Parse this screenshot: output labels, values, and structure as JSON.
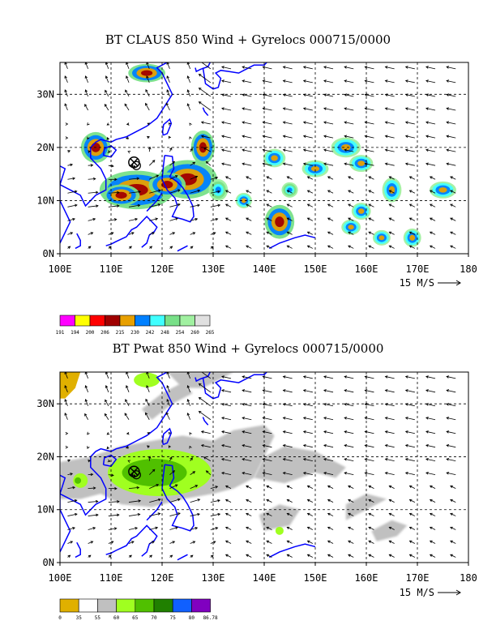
{
  "chart_data": [
    {
      "type": "heatmap",
      "title": "BT CLAUS 850 Wind + Gyrelocs 000715/0000",
      "x_ticks": [
        "100E",
        "110E",
        "120E",
        "130E",
        "140E",
        "150E",
        "160E",
        "170E",
        "180"
      ],
      "y_ticks": [
        "0N",
        "10N",
        "20N",
        "30N"
      ],
      "xlim": [
        100,
        180
      ],
      "ylim": [
        0,
        36
      ],
      "vector_reference": "15 M/S",
      "colorbar": {
        "labels": [
          "191",
          "194",
          "200",
          "206",
          "215",
          "230",
          "242",
          "248",
          "254",
          "260",
          "265"
        ],
        "colors": [
          "#ff00ff",
          "#ffff00",
          "#ff0000",
          "#a00000",
          "#e8a000",
          "#0080ff",
          "#40ffff",
          "#78e088",
          "#a0f0a0",
          "#e0e0e0"
        ]
      },
      "gyre_centers": [
        [
          114.5,
          17.2
        ]
      ],
      "cloud_patches": [
        {
          "lon": 115,
          "lat": 12,
          "rx": 5,
          "ry": 2.5,
          "level": 3
        },
        {
          "lon": 125,
          "lat": 14,
          "rx": 4,
          "ry": 2.5,
          "level": 2
        },
        {
          "lon": 121,
          "lat": 13,
          "rx": 2.5,
          "ry": 1.6,
          "level": 2
        },
        {
          "lon": 112,
          "lat": 11,
          "rx": 2.5,
          "ry": 1.4,
          "level": 3
        },
        {
          "lon": 107,
          "lat": 20,
          "rx": 2,
          "ry": 2,
          "level": 2
        },
        {
          "lon": 128,
          "lat": 20,
          "rx": 1.6,
          "ry": 2.2,
          "level": 2
        },
        {
          "lon": 117,
          "lat": 34,
          "rx": 2.5,
          "ry": 1.2,
          "level": 2
        },
        {
          "lon": 143,
          "lat": 6,
          "rx": 2,
          "ry": 2.2,
          "level": 3
        },
        {
          "lon": 142,
          "lat": 18,
          "rx": 1.5,
          "ry": 1.2,
          "level": 1
        },
        {
          "lon": 150,
          "lat": 16,
          "rx": 1.8,
          "ry": 1.1,
          "level": 1
        },
        {
          "lon": 156,
          "lat": 20,
          "rx": 2,
          "ry": 1.3,
          "level": 1
        },
        {
          "lon": 159,
          "lat": 17,
          "rx": 1.6,
          "ry": 1.1,
          "level": 1
        },
        {
          "lon": 159,
          "lat": 8,
          "rx": 1.3,
          "ry": 1.1,
          "level": 1
        },
        {
          "lon": 157,
          "lat": 5,
          "rx": 1.3,
          "ry": 1,
          "level": 1
        },
        {
          "lon": 165,
          "lat": 12,
          "rx": 1.3,
          "ry": 1.6,
          "level": 1
        },
        {
          "lon": 175,
          "lat": 12,
          "rx": 1.8,
          "ry": 1.1,
          "level": 1
        },
        {
          "lon": 163,
          "lat": 3,
          "rx": 1.2,
          "ry": 1,
          "level": 1
        },
        {
          "lon": 169,
          "lat": 3,
          "rx": 1.2,
          "ry": 1.2,
          "level": 1
        },
        {
          "lon": 136,
          "lat": 10,
          "rx": 1.1,
          "ry": 1,
          "level": 1
        },
        {
          "lon": 145,
          "lat": 12,
          "rx": 1.1,
          "ry": 1,
          "level": 0
        },
        {
          "lon": 131,
          "lat": 12,
          "rx": 1.3,
          "ry": 1.4,
          "level": 0
        }
      ]
    },
    {
      "type": "heatmap",
      "title": "BT Pwat 850 Wind + Gyrelocs 000715/0000",
      "x_ticks": [
        "100E",
        "110E",
        "120E",
        "130E",
        "140E",
        "150E",
        "160E",
        "170E",
        "180"
      ],
      "y_ticks": [
        "0N",
        "10N",
        "20N",
        "30N"
      ],
      "xlim": [
        100,
        180
      ],
      "ylim": [
        0,
        36
      ],
      "vector_reference": "15 M/S",
      "colorbar": {
        "labels": [
          "0",
          "35",
          "55",
          "60",
          "65",
          "70",
          "75",
          "80",
          "86.78"
        ],
        "colors": [
          "#e0b000",
          "#ffffff",
          "#c0c0c0",
          "#a0ff20",
          "#50c000",
          "#208000",
          "#1060ff",
          "#8000c0"
        ]
      },
      "gyre_centers": [
        [
          114.5,
          17.2
        ]
      ]
    }
  ]
}
